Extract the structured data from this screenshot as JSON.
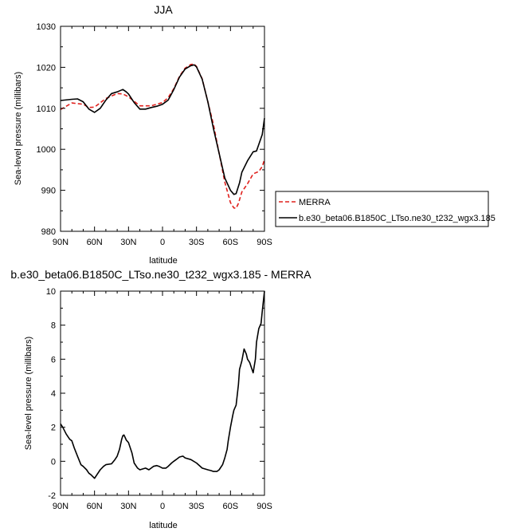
{
  "chart_data": [
    {
      "type": "line",
      "title": "JJA",
      "xlabel": "latitude",
      "ylabel": "Sea-level pressure (millibars)",
      "xlim": [
        -90,
        90
      ],
      "ylim": [
        980,
        1030
      ],
      "x_tick_values": [
        -90,
        -60,
        -30,
        0,
        30,
        60,
        90
      ],
      "x_tick_labels": [
        "90N",
        "60N",
        "30N",
        "0",
        "30S",
        "60S",
        "90S"
      ],
      "y_ticks": [
        980,
        990,
        1000,
        1010,
        1020,
        1030
      ],
      "legend_position": "right",
      "series": [
        {
          "name": "MERRA",
          "color": "#e0201c",
          "dash": true,
          "x": [
            -90,
            -80,
            -70,
            -65,
            -60,
            -50,
            -40,
            -35,
            -30,
            -20,
            -10,
            0,
            5,
            10,
            15,
            20,
            25,
            28,
            30,
            35,
            40,
            45,
            50,
            55,
            60,
            63,
            65,
            67,
            70,
            75,
            80,
            85,
            88,
            90
          ],
          "y": [
            1009.7,
            1011.3,
            1011.0,
            1010.2,
            1010.3,
            1012.4,
            1013.6,
            1013.5,
            1012.8,
            1010.6,
            1010.6,
            1011.4,
            1012.6,
            1014.8,
            1017.8,
            1019.8,
            1020.7,
            1020.8,
            1020.2,
            1017.2,
            1011.6,
            1006.0,
            999.0,
            992.0,
            987.0,
            985.7,
            985.6,
            986.8,
            989.6,
            991.6,
            994.0,
            994.6,
            995.8,
            997.5
          ]
        },
        {
          "name": "b.e30_beta06.B1850C_LTso.ne30_t232_wgx3.185",
          "color": "#000000",
          "dash": false,
          "x": [
            -90,
            -80,
            -75,
            -70,
            -65,
            -60,
            -55,
            -50,
            -45,
            -40,
            -35,
            -32,
            -30,
            -25,
            -20,
            -15,
            -10,
            -5,
            0,
            5,
            10,
            15,
            20,
            25,
            28,
            30,
            35,
            40,
            45,
            50,
            55,
            60,
            63,
            65,
            68,
            70,
            75,
            80,
            83,
            85,
            88,
            90
          ],
          "y": [
            1011.9,
            1012.2,
            1012.3,
            1011.6,
            1009.8,
            1009.0,
            1010.0,
            1012.0,
            1013.6,
            1014.0,
            1014.6,
            1014.0,
            1013.5,
            1011.4,
            1009.8,
            1009.8,
            1010.2,
            1010.5,
            1011.0,
            1012.0,
            1014.6,
            1017.6,
            1019.6,
            1020.4,
            1020.6,
            1020.1,
            1017.1,
            1011.6,
            1005.0,
            999.0,
            993.0,
            990.0,
            989.0,
            989.2,
            991.8,
            994.4,
            997.2,
            999.4,
            999.6,
            1001.2,
            1003.6,
            1007.6
          ]
        }
      ]
    },
    {
      "type": "line",
      "title": "b.e30_beta06.B1850C_LTso.ne30_t232_wgx3.185 - MERRA",
      "xlabel": "latitude",
      "ylabel": "Sea-level pressure (millibars)",
      "xlim": [
        -90,
        90
      ],
      "ylim": [
        -2,
        10
      ],
      "x_tick_values": [
        -90,
        -60,
        -30,
        0,
        30,
        60,
        90
      ],
      "x_tick_labels": [
        "90N",
        "60N",
        "30N",
        "0",
        "30S",
        "60S",
        "90S"
      ],
      "y_ticks": [
        -2,
        0,
        2,
        4,
        6,
        8,
        10
      ],
      "series": [
        {
          "color": "#000000",
          "x": [
            -90,
            -88,
            -85,
            -82,
            -80,
            -78,
            -75,
            -72,
            -70,
            -67,
            -65,
            -63,
            -60,
            -58,
            -55,
            -52,
            -50,
            -45,
            -42,
            -40,
            -38,
            -36,
            -35,
            -34,
            -33,
            -32,
            -30,
            -27,
            -25,
            -22,
            -20,
            -15,
            -12,
            -10,
            -8,
            -5,
            -3,
            0,
            3,
            5,
            8,
            10,
            12,
            15,
            18,
            20,
            25,
            30,
            35,
            40,
            43,
            45,
            48,
            50,
            53,
            55,
            57,
            58,
            60,
            62,
            63,
            65,
            67,
            68,
            70,
            72,
            74,
            75,
            77,
            78,
            80,
            82,
            83,
            85,
            87,
            88,
            90
          ],
          "y": [
            2.2,
            2.0,
            1.6,
            1.3,
            1.2,
            0.8,
            0.3,
            -0.2,
            -0.3,
            -0.5,
            -0.7,
            -0.8,
            -1.0,
            -0.8,
            -0.5,
            -0.3,
            -0.2,
            -0.15,
            0.1,
            0.3,
            0.7,
            1.3,
            1.5,
            1.55,
            1.4,
            1.25,
            1.1,
            0.5,
            -0.1,
            -0.4,
            -0.5,
            -0.4,
            -0.5,
            -0.4,
            -0.3,
            -0.25,
            -0.3,
            -0.4,
            -0.4,
            -0.3,
            -0.1,
            0.0,
            0.1,
            0.25,
            0.3,
            0.2,
            0.1,
            -0.1,
            -0.4,
            -0.5,
            -0.55,
            -0.6,
            -0.6,
            -0.5,
            -0.2,
            0.2,
            0.7,
            1.2,
            2.0,
            2.7,
            3.0,
            3.3,
            4.5,
            5.4,
            5.9,
            6.6,
            6.3,
            6.0,
            5.8,
            5.6,
            5.2,
            6.0,
            7.0,
            7.8,
            8.1,
            8.8,
            10.0
          ]
        }
      ]
    }
  ]
}
